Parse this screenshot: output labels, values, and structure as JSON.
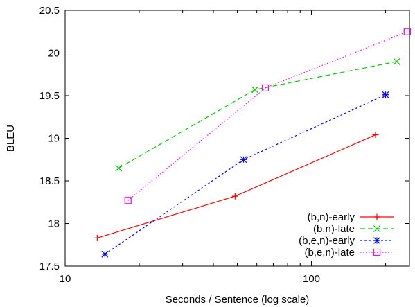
{
  "chart_data": {
    "type": "line",
    "title": "",
    "xlabel": "Seconds / Sentence (log scale)",
    "ylabel": "BLEU",
    "xscale": "log",
    "xlim": [
      10,
      250
    ],
    "ylim": [
      17.5,
      20.5
    ],
    "xticks": [
      10,
      100
    ],
    "xtick_labels": [
      "10",
      "100"
    ],
    "yticks": [
      17.5,
      18,
      18.5,
      19,
      19.5,
      20,
      20.5
    ],
    "ytick_labels": [
      "17.5",
      "18",
      "18.5",
      "19",
      "19.5",
      "20",
      "20.5"
    ],
    "grid": false,
    "legend_position": "bottom-right",
    "series": [
      {
        "name": "(b,n)-early",
        "color": "#ff0000",
        "marker": "plus",
        "dash": "",
        "x": [
          13.5,
          49,
          182
        ],
        "y": [
          17.83,
          18.32,
          19.04
        ]
      },
      {
        "name": "(b,n)-late",
        "color": "#00cc00",
        "marker": "cross",
        "dash": "7,4",
        "x": [
          16.5,
          59,
          222
        ],
        "y": [
          18.65,
          19.57,
          19.9
        ]
      },
      {
        "name": "(b,e,n)-early",
        "color": "#0000ff",
        "marker": "star",
        "dash": "3,3",
        "x": [
          14.5,
          53,
          200
        ],
        "y": [
          17.64,
          18.75,
          19.51
        ]
      },
      {
        "name": "(b,e,n)-late",
        "color": "#ff00ff",
        "marker": "square",
        "dash": "1.5,2.5",
        "x": [
          18,
          65,
          245
        ],
        "y": [
          18.27,
          19.59,
          20.25
        ]
      }
    ]
  }
}
